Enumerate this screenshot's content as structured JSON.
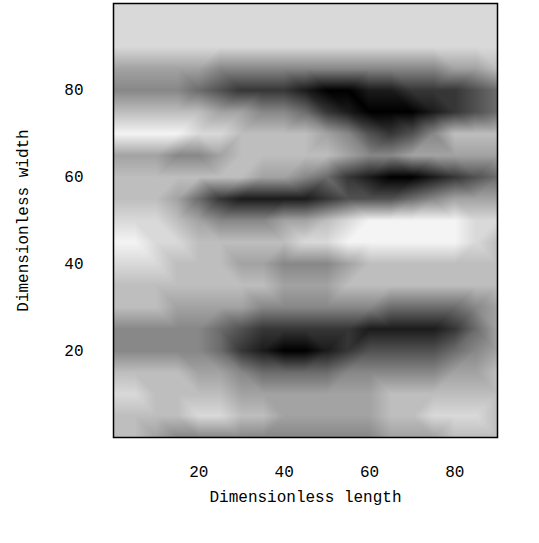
{
  "chart_data": {
    "type": "heatmap",
    "xlabel": "Dimensionless length",
    "ylabel": "Dimensionless width",
    "xlim": [
      0,
      90
    ],
    "ylim": [
      0,
      100
    ],
    "xticks": [
      20,
      40,
      60,
      80
    ],
    "yticks": [
      20,
      40,
      60,
      80
    ],
    "x": [
      0,
      5,
      10,
      15,
      20,
      25,
      30,
      35,
      40,
      45,
      50,
      55,
      60,
      65,
      70,
      75,
      80,
      85,
      90
    ],
    "y": [
      100,
      95,
      90,
      85,
      80,
      75,
      70,
      65,
      60,
      55,
      50,
      45,
      40,
      35,
      30,
      25,
      20,
      15,
      10,
      5,
      0
    ],
    "values": [
      [
        2,
        2,
        2,
        2,
        2,
        2,
        2,
        2,
        2,
        2,
        2,
        2,
        2,
        2,
        2,
        2,
        2,
        2,
        2
      ],
      [
        2,
        2,
        2,
        2,
        2,
        2,
        2,
        2,
        2,
        2,
        2,
        2,
        2,
        2,
        2,
        2,
        2,
        2,
        2
      ],
      [
        2,
        2,
        2,
        2,
        2,
        2,
        2,
        2,
        2,
        2,
        2,
        2,
        2,
        2,
        2,
        2,
        2,
        2,
        2
      ],
      [
        4,
        4,
        4,
        4,
        4,
        5,
        5,
        5,
        5,
        5,
        5,
        5,
        5,
        5,
        5,
        5,
        4,
        4,
        3
      ],
      [
        5,
        5,
        5,
        5,
        6,
        7,
        8,
        8,
        8,
        9,
        10,
        10,
        9,
        9,
        8,
        8,
        8,
        7,
        6
      ],
      [
        3,
        3,
        3,
        3,
        3,
        4,
        4,
        5,
        5,
        6,
        8,
        9,
        10,
        10,
        10,
        9,
        8,
        7,
        6
      ],
      [
        1,
        1,
        1,
        1,
        2,
        2,
        3,
        3,
        3,
        3,
        4,
        5,
        7,
        8,
        7,
        5,
        3,
        3,
        3
      ],
      [
        4,
        4,
        4,
        5,
        5,
        4,
        3,
        3,
        3,
        3,
        3,
        4,
        5,
        5,
        4,
        4,
        4,
        4,
        4
      ],
      [
        3,
        3,
        3,
        3,
        3,
        3,
        3,
        4,
        4,
        5,
        6,
        8,
        9,
        10,
        10,
        9,
        8,
        7,
        6
      ],
      [
        3,
        3,
        3,
        4,
        6,
        8,
        9,
        9,
        9,
        9,
        8,
        7,
        7,
        7,
        6,
        5,
        4,
        4,
        4
      ],
      [
        2,
        2,
        2,
        3,
        4,
        5,
        5,
        5,
        4,
        4,
        3,
        2,
        1,
        1,
        1,
        1,
        1,
        2,
        2
      ],
      [
        1,
        1,
        2,
        2,
        3,
        3,
        3,
        3,
        3,
        2,
        2,
        1,
        1,
        1,
        1,
        1,
        1,
        2,
        3
      ],
      [
        2,
        2,
        2,
        3,
        3,
        3,
        4,
        4,
        5,
        5,
        5,
        4,
        3,
        3,
        3,
        3,
        3,
        3,
        3
      ],
      [
        3,
        3,
        3,
        3,
        3,
        3,
        3,
        3,
        4,
        4,
        4,
        3,
        3,
        3,
        3,
        3,
        3,
        3,
        3
      ],
      [
        3,
        3,
        3,
        4,
        4,
        4,
        4,
        5,
        5,
        5,
        5,
        5,
        5,
        6,
        6,
        6,
        6,
        5,
        4
      ],
      [
        5,
        5,
        5,
        5,
        5,
        6,
        7,
        8,
        8,
        8,
        8,
        8,
        9,
        9,
        9,
        9,
        8,
        6,
        4
      ],
      [
        5,
        5,
        5,
        5,
        5,
        6,
        8,
        9,
        10,
        10,
        9,
        8,
        7,
        7,
        7,
        7,
        6,
        5,
        4
      ],
      [
        3,
        3,
        3,
        3,
        4,
        4,
        5,
        6,
        6,
        6,
        6,
        5,
        5,
        5,
        5,
        5,
        4,
        4,
        3
      ],
      [
        2,
        2,
        3,
        3,
        3,
        3,
        4,
        4,
        4,
        4,
        4,
        4,
        4,
        3,
        3,
        3,
        3,
        3,
        3
      ],
      [
        3,
        3,
        3,
        3,
        2,
        2,
        3,
        3,
        4,
        4,
        4,
        4,
        4,
        3,
        3,
        2,
        2,
        2,
        3
      ],
      [
        3,
        3,
        4,
        5,
        5,
        5,
        5,
        5,
        5,
        5,
        5,
        5,
        5,
        4,
        4,
        4,
        3,
        3,
        3
      ]
    ]
  }
}
